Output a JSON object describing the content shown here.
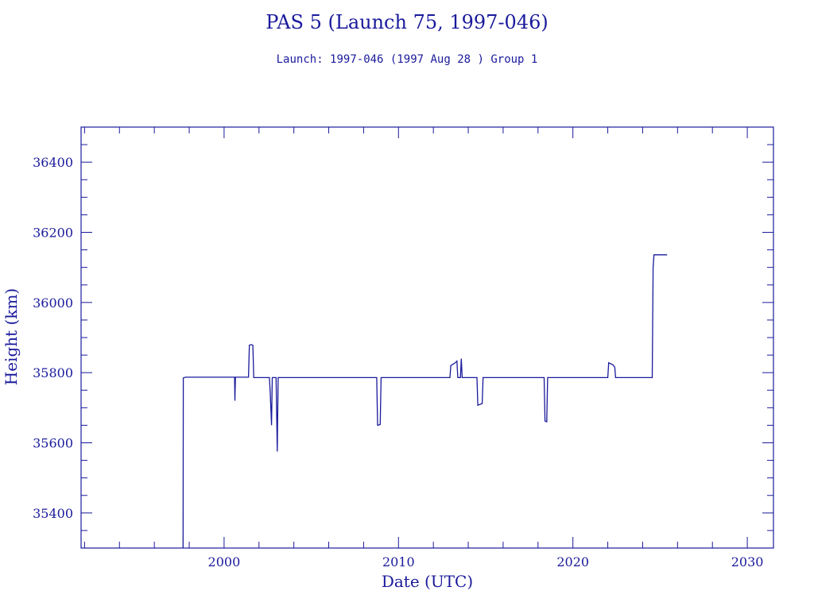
{
  "chart_data": {
    "type": "line",
    "title": "PAS 5 (Launch 75, 1997-046)",
    "subtitle": "Launch: 1997-046  (1997 Aug 28 )  Group 1",
    "xlabel": "Date (UTC)",
    "ylabel": "Height (km)",
    "xlim": [
      1991.8,
      2031.5
    ],
    "ylim": [
      35300,
      36500
    ],
    "x_ticks": [
      2000,
      2010,
      2020,
      2030
    ],
    "y_ticks": [
      35400,
      35600,
      35800,
      36000,
      36200,
      36400
    ],
    "grid": false,
    "line_color": "#1a1a9c",
    "series": [
      {
        "points": [
          [
            1997.65,
            35300
          ],
          [
            1997.66,
            35785
          ],
          [
            1997.8,
            35787
          ],
          [
            2000.6,
            35787
          ],
          [
            2000.62,
            35720
          ],
          [
            2000.65,
            35787
          ],
          [
            2001.4,
            35787
          ],
          [
            2001.45,
            35878
          ],
          [
            2001.55,
            35880
          ],
          [
            2001.65,
            35878
          ],
          [
            2001.7,
            35786
          ],
          [
            2002.6,
            35786
          ],
          [
            2002.65,
            35740
          ],
          [
            2002.72,
            35650
          ],
          [
            2002.76,
            35786
          ],
          [
            2002.98,
            35786
          ],
          [
            2003.05,
            35575
          ],
          [
            2003.1,
            35786
          ],
          [
            2008.75,
            35786
          ],
          [
            2008.8,
            35650
          ],
          [
            2008.95,
            35652
          ],
          [
            2009.0,
            35786
          ],
          [
            2012.95,
            35786
          ],
          [
            2013.0,
            35820
          ],
          [
            2013.25,
            35828
          ],
          [
            2013.35,
            35833
          ],
          [
            2013.4,
            35786
          ],
          [
            2013.55,
            35786
          ],
          [
            2013.6,
            35840
          ],
          [
            2013.65,
            35786
          ],
          [
            2014.5,
            35786
          ],
          [
            2014.55,
            35707
          ],
          [
            2014.8,
            35712
          ],
          [
            2014.85,
            35786
          ],
          [
            2018.35,
            35786
          ],
          [
            2018.4,
            35662
          ],
          [
            2018.5,
            35660
          ],
          [
            2018.55,
            35786
          ],
          [
            2022.0,
            35786
          ],
          [
            2022.05,
            35828
          ],
          [
            2022.3,
            35822
          ],
          [
            2022.4,
            35815
          ],
          [
            2022.45,
            35786
          ],
          [
            2024.55,
            35786
          ],
          [
            2024.6,
            36100
          ],
          [
            2024.65,
            36136
          ],
          [
            2025.4,
            36136
          ]
        ]
      }
    ]
  }
}
